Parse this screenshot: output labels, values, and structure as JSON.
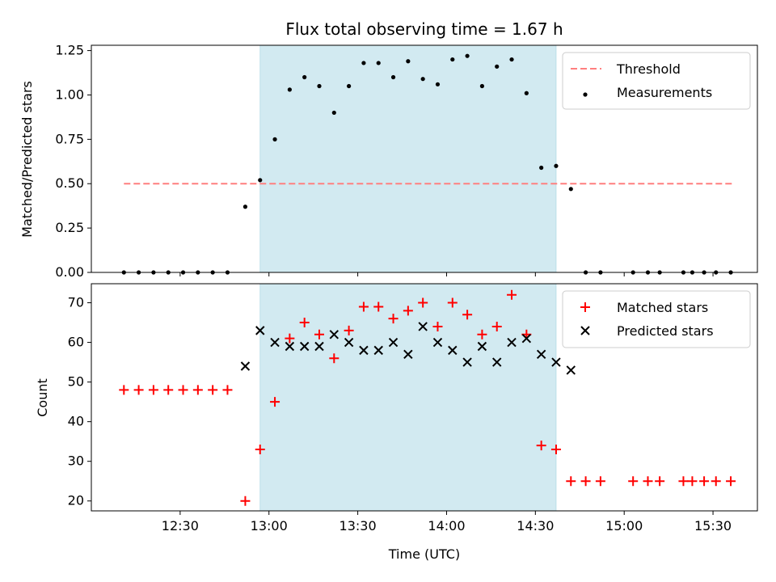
{
  "chart_data": [
    {
      "type": "scatter",
      "title": "Flux total observing time = 1.67 h",
      "xlabel": "",
      "ylabel": "Matched/Predicted stars",
      "ylim": [
        0,
        1.28
      ],
      "yticks": [
        0.0,
        0.25,
        0.5,
        0.75,
        1.0,
        1.25
      ],
      "ytick_labels": [
        "0.00",
        "0.25",
        "0.50",
        "0.75",
        "1.00",
        "1.25"
      ],
      "legend": "top-right",
      "highlight_span": {
        "start": "12:57",
        "end": "14:37",
        "color": "#add8e6"
      },
      "series": [
        {
          "name": "Threshold",
          "style": "dashed-line",
          "color": "#ff7f7f",
          "x": [
            "12:11",
            "15:37"
          ],
          "y": [
            0.5,
            0.5
          ]
        },
        {
          "name": "Measurements",
          "style": "dot",
          "color": "#000000",
          "x": [
            "12:11",
            "12:16",
            "12:21",
            "12:26",
            "12:31",
            "12:36",
            "12:41",
            "12:46",
            "12:52",
            "12:57",
            "13:02",
            "13:07",
            "13:12",
            "13:17",
            "13:22",
            "13:27",
            "13:32",
            "13:37",
            "13:42",
            "13:47",
            "13:52",
            "13:57",
            "14:02",
            "14:07",
            "14:12",
            "14:17",
            "14:22",
            "14:27",
            "14:32",
            "14:37",
            "14:42",
            "14:47",
            "14:52",
            "15:03",
            "15:08",
            "15:12",
            "15:20",
            "15:23",
            "15:27",
            "15:31",
            "15:36"
          ],
          "y": [
            0,
            0,
            0,
            0,
            0,
            0,
            0,
            0,
            0.37,
            0.52,
            0.75,
            1.03,
            1.1,
            1.05,
            0.9,
            1.05,
            1.18,
            1.18,
            1.1,
            1.19,
            1.09,
            1.06,
            1.2,
            1.22,
            1.05,
            1.16,
            1.2,
            1.01,
            0.59,
            0.6,
            0.47,
            0,
            0,
            0,
            0,
            0,
            0,
            0,
            0,
            0,
            0
          ]
        }
      ]
    },
    {
      "type": "scatter",
      "title": "",
      "xlabel": "Time (UTC)",
      "ylabel": "Count",
      "ylim": [
        17.5,
        74.8
      ],
      "yticks": [
        20,
        30,
        40,
        50,
        60,
        70
      ],
      "ytick_labels": [
        "20",
        "30",
        "40",
        "50",
        "60",
        "70"
      ],
      "xticks": [
        "12:30",
        "13:00",
        "13:30",
        "14:00",
        "14:30",
        "15:00",
        "15:30"
      ],
      "legend": "top-right",
      "highlight_span": {
        "start": "12:57",
        "end": "14:37",
        "color": "#add8e6"
      },
      "series": [
        {
          "name": "Matched stars",
          "style": "plus",
          "color": "#ff0000",
          "x": [
            "12:11",
            "12:16",
            "12:21",
            "12:26",
            "12:31",
            "12:36",
            "12:41",
            "12:46",
            "12:52",
            "12:57",
            "13:02",
            "13:07",
            "13:12",
            "13:17",
            "13:22",
            "13:27",
            "13:32",
            "13:37",
            "13:42",
            "13:47",
            "13:52",
            "13:57",
            "14:02",
            "14:07",
            "14:12",
            "14:17",
            "14:22",
            "14:27",
            "14:32",
            "14:37",
            "14:42",
            "14:47",
            "14:52",
            "15:03",
            "15:08",
            "15:12",
            "15:20",
            "15:23",
            "15:27",
            "15:31",
            "15:36"
          ],
          "y": [
            48,
            48,
            48,
            48,
            48,
            48,
            48,
            48,
            20,
            33,
            45,
            61,
            65,
            62,
            56,
            63,
            69,
            69,
            66,
            68,
            70,
            64,
            70,
            67,
            62,
            64,
            72,
            62,
            34,
            33,
            25,
            25,
            25,
            25,
            25,
            25,
            25,
            25,
            25,
            25,
            25
          ]
        },
        {
          "name": "Predicted stars",
          "style": "x",
          "color": "#000000",
          "x": [
            "12:52",
            "12:57",
            "13:02",
            "13:07",
            "13:12",
            "13:17",
            "13:22",
            "13:27",
            "13:32",
            "13:37",
            "13:42",
            "13:47",
            "13:52",
            "13:57",
            "14:02",
            "14:07",
            "14:12",
            "14:17",
            "14:22",
            "14:27",
            "14:32",
            "14:37",
            "14:42"
          ],
          "y": [
            54,
            63,
            60,
            59,
            59,
            59,
            62,
            60,
            58,
            58,
            60,
            57,
            64,
            60,
            58,
            55,
            59,
            55,
            60,
            61,
            57,
            55,
            53
          ]
        }
      ]
    }
  ]
}
